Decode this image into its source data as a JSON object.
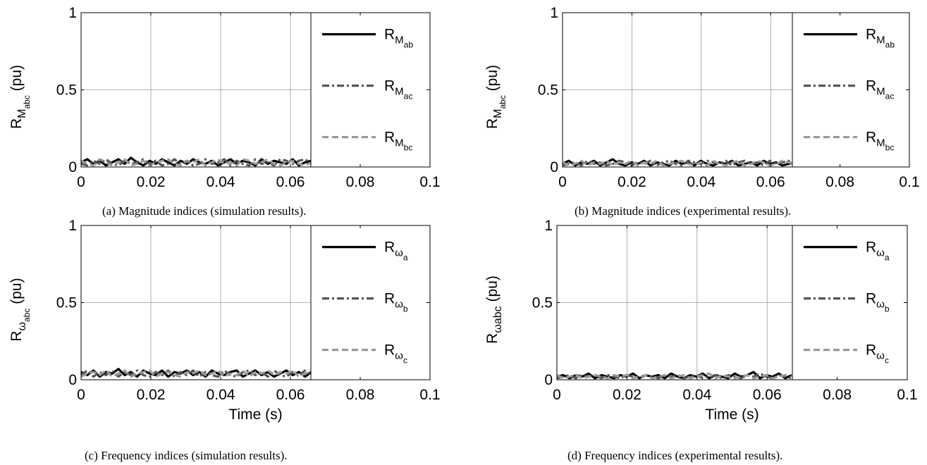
{
  "chart_data": [
    {
      "type": "line",
      "panel": "a",
      "caption": "(a) Magnitude indices (simulation results).",
      "ylabel_main": "R",
      "ylabel_sub": "M",
      "ylabel_subsub": "abc",
      "ylabel_unit": "(pu)",
      "xlabel": "",
      "xlim": [
        0,
        0.1
      ],
      "ylim": [
        0,
        1
      ],
      "xticks": [
        "0",
        "0.02",
        "0.04",
        "0.06",
        "0.08",
        "0.1"
      ],
      "yticks": [
        "0",
        "0.5",
        "1"
      ],
      "grid": true,
      "legend_position": "right",
      "series": [
        {
          "main": "R",
          "sub": "M",
          "subsub": "ab",
          "style": "solid",
          "color": "#000000",
          "values": [
            0.03,
            0.05,
            0.02,
            0.04,
            0.01,
            0.03,
            0.05,
            0.02,
            0.06,
            0.03,
            0.01,
            0.04,
            0.02,
            0.05,
            0.03,
            0.01,
            0.04,
            0.02,
            0.05,
            0.03,
            0.02,
            0.04,
            0.01,
            0.03,
            0.05,
            0.02,
            0.04,
            0.03,
            0.01,
            0.05,
            0.02,
            0.04,
            0.03,
            0.02,
            0.05,
            0.01,
            0.03,
            0.04
          ]
        },
        {
          "main": "R",
          "sub": "M",
          "subsub": "ac",
          "style": "dashdot",
          "color": "#555555",
          "values": [
            0.02,
            0.01,
            0.04,
            0.02,
            0.05,
            0.02,
            0.01,
            0.04,
            0.02,
            0.03,
            0.05,
            0.02,
            0.04,
            0.01,
            0.02,
            0.05,
            0.02,
            0.04,
            0.01,
            0.02,
            0.05,
            0.02,
            0.03,
            0.05,
            0.01,
            0.04,
            0.02,
            0.01,
            0.05,
            0.02,
            0.03,
            0.01,
            0.05,
            0.04,
            0.02,
            0.04,
            0.05,
            0.02
          ]
        },
        {
          "main": "R",
          "sub": "M",
          "subsub": "bc",
          "style": "dashed",
          "color": "#999999",
          "values": [
            0.04,
            0.02,
            0.01,
            0.05,
            0.03,
            0.01,
            0.03,
            0.05,
            0.01,
            0.02,
            0.04,
            0.01,
            0.03,
            0.04,
            0.05,
            0.02,
            0.01,
            0.04,
            0.03,
            0.05,
            0.01,
            0.03,
            0.05,
            0.02,
            0.03,
            0.01,
            0.05,
            0.04,
            0.02,
            0.03,
            0.05,
            0.02,
            0.01,
            0.03,
            0.04,
            0.02,
            0.01,
            0.03
          ]
        }
      ]
    },
    {
      "type": "line",
      "panel": "b",
      "caption": "(b) Magnitude indices (experimental results).",
      "ylabel_main": "R",
      "ylabel_sub": "M",
      "ylabel_subsub": "abc",
      "ylabel_unit": "(pu)",
      "xlabel": "",
      "xlim": [
        0,
        0.1
      ],
      "ylim": [
        0,
        1
      ],
      "xticks": [
        "0",
        "0.02",
        "0.04",
        "0.06",
        "0.08",
        "0.1"
      ],
      "yticks": [
        "0",
        "0.5",
        "1"
      ],
      "grid": true,
      "legend_position": "right",
      "series": [
        {
          "main": "R",
          "sub": "M",
          "subsub": "ab",
          "style": "solid",
          "color": "#000000",
          "values": [
            0.02,
            0.04,
            0.01,
            0.03,
            0.02,
            0.04,
            0.01,
            0.03,
            0.05,
            0.02,
            0.01,
            0.03,
            0.02,
            0.04,
            0.01,
            0.03,
            0.02,
            0.01,
            0.04,
            0.02,
            0.03,
            0.01,
            0.04,
            0.02,
            0.01,
            0.03,
            0.02,
            0.04,
            0.01,
            0.02,
            0.03,
            0.01,
            0.04,
            0.02,
            0.03,
            0.01,
            0.02,
            0.03
          ]
        },
        {
          "main": "R",
          "sub": "M",
          "subsub": "ac",
          "style": "dashdot",
          "color": "#555555",
          "values": [
            0.01,
            0.02,
            0.03,
            0.01,
            0.04,
            0.02,
            0.03,
            0.01,
            0.02,
            0.04,
            0.03,
            0.01,
            0.03,
            0.02,
            0.04,
            0.01,
            0.03,
            0.04,
            0.02,
            0.01,
            0.04,
            0.03,
            0.02,
            0.04,
            0.03,
            0.02,
            0.04,
            0.01,
            0.03,
            0.04,
            0.02,
            0.03,
            0.01,
            0.04,
            0.02,
            0.03,
            0.04,
            0.01
          ]
        },
        {
          "main": "R",
          "sub": "M",
          "subsub": "bc",
          "style": "dashed",
          "color": "#999999",
          "values": [
            0.03,
            0.01,
            0.02,
            0.04,
            0.01,
            0.03,
            0.02,
            0.04,
            0.01,
            0.03,
            0.02,
            0.04,
            0.01,
            0.03,
            0.02,
            0.04,
            0.01,
            0.02,
            0.03,
            0.04,
            0.02,
            0.01,
            0.03,
            0.01,
            0.04,
            0.02,
            0.01,
            0.03,
            0.04,
            0.01,
            0.02,
            0.04,
            0.03,
            0.01,
            0.02,
            0.04,
            0.03,
            0.02
          ]
        }
      ]
    },
    {
      "type": "line",
      "panel": "c",
      "caption": "(c) Frequency indices (simulation results).",
      "ylabel_main": "R",
      "ylabel_sub": "ω",
      "ylabel_subsub": "abc",
      "ylabel_unit": "(pu)",
      "xlabel": "Time (s)",
      "xlim": [
        0,
        0.1
      ],
      "ylim": [
        0,
        1
      ],
      "xticks": [
        "0",
        "0.02",
        "0.04",
        "0.06",
        "0.08",
        "0.1"
      ],
      "yticks": [
        "0",
        "0.5",
        "1"
      ],
      "grid": true,
      "legend_position": "right",
      "series": [
        {
          "main": "R",
          "sub": "ω",
          "subsub": "a",
          "style": "solid",
          "color": "#000000",
          "values": [
            0.05,
            0.03,
            0.06,
            0.02,
            0.05,
            0.04,
            0.07,
            0.03,
            0.05,
            0.02,
            0.06,
            0.04,
            0.03,
            0.06,
            0.02,
            0.05,
            0.04,
            0.06,
            0.03,
            0.05,
            0.02,
            0.06,
            0.04,
            0.03,
            0.05,
            0.06,
            0.02,
            0.04,
            0.06,
            0.03,
            0.05,
            0.02,
            0.04,
            0.06,
            0.03,
            0.05,
            0.02,
            0.05
          ]
        },
        {
          "main": "R",
          "sub": "ω",
          "subsub": "b",
          "style": "dashdot",
          "color": "#555555",
          "values": [
            0.03,
            0.06,
            0.02,
            0.05,
            0.03,
            0.06,
            0.02,
            0.05,
            0.03,
            0.06,
            0.03,
            0.02,
            0.05,
            0.03,
            0.06,
            0.02,
            0.05,
            0.03,
            0.06,
            0.02,
            0.05,
            0.03,
            0.02,
            0.06,
            0.03,
            0.02,
            0.05,
            0.06,
            0.03,
            0.05,
            0.02,
            0.06,
            0.03,
            0.02,
            0.05,
            0.03,
            0.06,
            0.03
          ]
        },
        {
          "main": "R",
          "sub": "ω",
          "subsub": "c",
          "style": "dashed",
          "color": "#999999",
          "values": [
            0.02,
            0.04,
            0.05,
            0.03,
            0.06,
            0.02,
            0.04,
            0.06,
            0.02,
            0.04,
            0.05,
            0.06,
            0.02,
            0.04,
            0.05,
            0.03,
            0.02,
            0.05,
            0.04,
            0.06,
            0.03,
            0.04,
            0.06,
            0.02,
            0.04,
            0.03,
            0.06,
            0.02,
            0.05,
            0.04,
            0.06,
            0.03,
            0.05,
            0.04,
            0.06,
            0.02,
            0.04,
            0.06
          ]
        }
      ]
    },
    {
      "type": "line",
      "panel": "d",
      "caption": "(d) Frequency indices (experimental results).",
      "ylabel_main": "R",
      "ylabel_sub": "ωabc",
      "ylabel_subsub": "",
      "ylabel_unit": "(pu)",
      "xlabel": "Time (s)",
      "xlim": [
        0,
        0.1
      ],
      "ylim": [
        0,
        1
      ],
      "xticks": [
        "0",
        "0.02",
        "0.04",
        "0.06",
        "0.08",
        "0.1"
      ],
      "yticks": [
        "0",
        "0.5",
        "1"
      ],
      "grid": true,
      "legend_position": "right",
      "series": [
        {
          "main": "R",
          "sub": "ω",
          "subsub": "a",
          "style": "solid",
          "color": "#000000",
          "values": [
            0.02,
            0.03,
            0.01,
            0.03,
            0.02,
            0.04,
            0.01,
            0.03,
            0.02,
            0.01,
            0.03,
            0.02,
            0.04,
            0.01,
            0.03,
            0.02,
            0.03,
            0.01,
            0.04,
            0.02,
            0.01,
            0.03,
            0.02,
            0.04,
            0.01,
            0.03,
            0.02,
            0.01,
            0.04,
            0.02,
            0.03,
            0.05,
            0.01,
            0.03,
            0.02,
            0.04,
            0.01,
            0.03
          ]
        },
        {
          "main": "R",
          "sub": "ω",
          "subsub": "b",
          "style": "dashdot",
          "color": "#555555",
          "values": [
            0.01,
            0.02,
            0.03,
            0.01,
            0.03,
            0.02,
            0.03,
            0.01,
            0.03,
            0.02,
            0.01,
            0.03,
            0.02,
            0.01,
            0.03,
            0.02,
            0.01,
            0.03,
            0.02,
            0.03,
            0.01,
            0.02,
            0.03,
            0.01,
            0.02,
            0.03,
            0.01,
            0.03,
            0.02,
            0.01,
            0.03,
            0.02,
            0.04,
            0.02,
            0.01,
            0.03,
            0.02,
            0.01
          ]
        },
        {
          "main": "R",
          "sub": "ω",
          "subsub": "c",
          "style": "dashed",
          "color": "#999999",
          "values": [
            0.03,
            0.01,
            0.02,
            0.03,
            0.01,
            0.02,
            0.03,
            0.02,
            0.01,
            0.03,
            0.02,
            0.03,
            0.01,
            0.02,
            0.03,
            0.01,
            0.02,
            0.03,
            0.01,
            0.02,
            0.03,
            0.01,
            0.02,
            0.03,
            0.04,
            0.01,
            0.03,
            0.02,
            0.01,
            0.02,
            0.03,
            0.01,
            0.02,
            0.03,
            0.01,
            0.02,
            0.03,
            0.02
          ]
        }
      ]
    }
  ]
}
